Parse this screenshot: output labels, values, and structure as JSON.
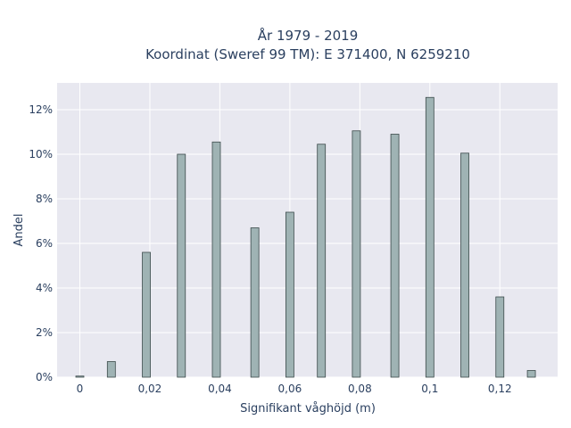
{
  "chart_data": {
    "type": "bar",
    "title_line1": "År 1979 - 2019",
    "title_line2": "Koordinat (Sweref 99 TM): E 371400, N 6259210",
    "xlabel": "Signifikant våghöjd (m)",
    "ylabel": "Andel",
    "x": [
      0,
      0.009,
      0.019,
      0.029,
      0.039,
      0.05,
      0.06,
      0.069,
      0.079,
      0.09,
      0.1,
      0.11,
      0.12,
      0.129
    ],
    "values": [
      0.05,
      0.7,
      5.6,
      10.0,
      10.55,
      6.7,
      7.4,
      10.45,
      11.05,
      10.9,
      12.55,
      10.05,
      3.6,
      0.3
    ],
    "xlim": [
      -0.0065,
      0.1365
    ],
    "ylim": [
      0,
      13.2
    ],
    "xticks": [
      0,
      0.02,
      0.04,
      0.06,
      0.08,
      0.1,
      0.12
    ],
    "xtick_labels": [
      "0",
      "0,02",
      "0,04",
      "0,06",
      "0,08",
      "0,1",
      "0,12"
    ],
    "yticks": [
      0,
      2,
      4,
      6,
      8,
      10,
      12
    ],
    "ytick_labels": [
      "0%",
      "2%",
      "4%",
      "6%",
      "8%",
      "10%",
      "12%"
    ],
    "bar_color": "#9fb3b4",
    "bar_outline": "#3b4a4a",
    "plot_bg": "#e8e8f0",
    "grid": true
  }
}
